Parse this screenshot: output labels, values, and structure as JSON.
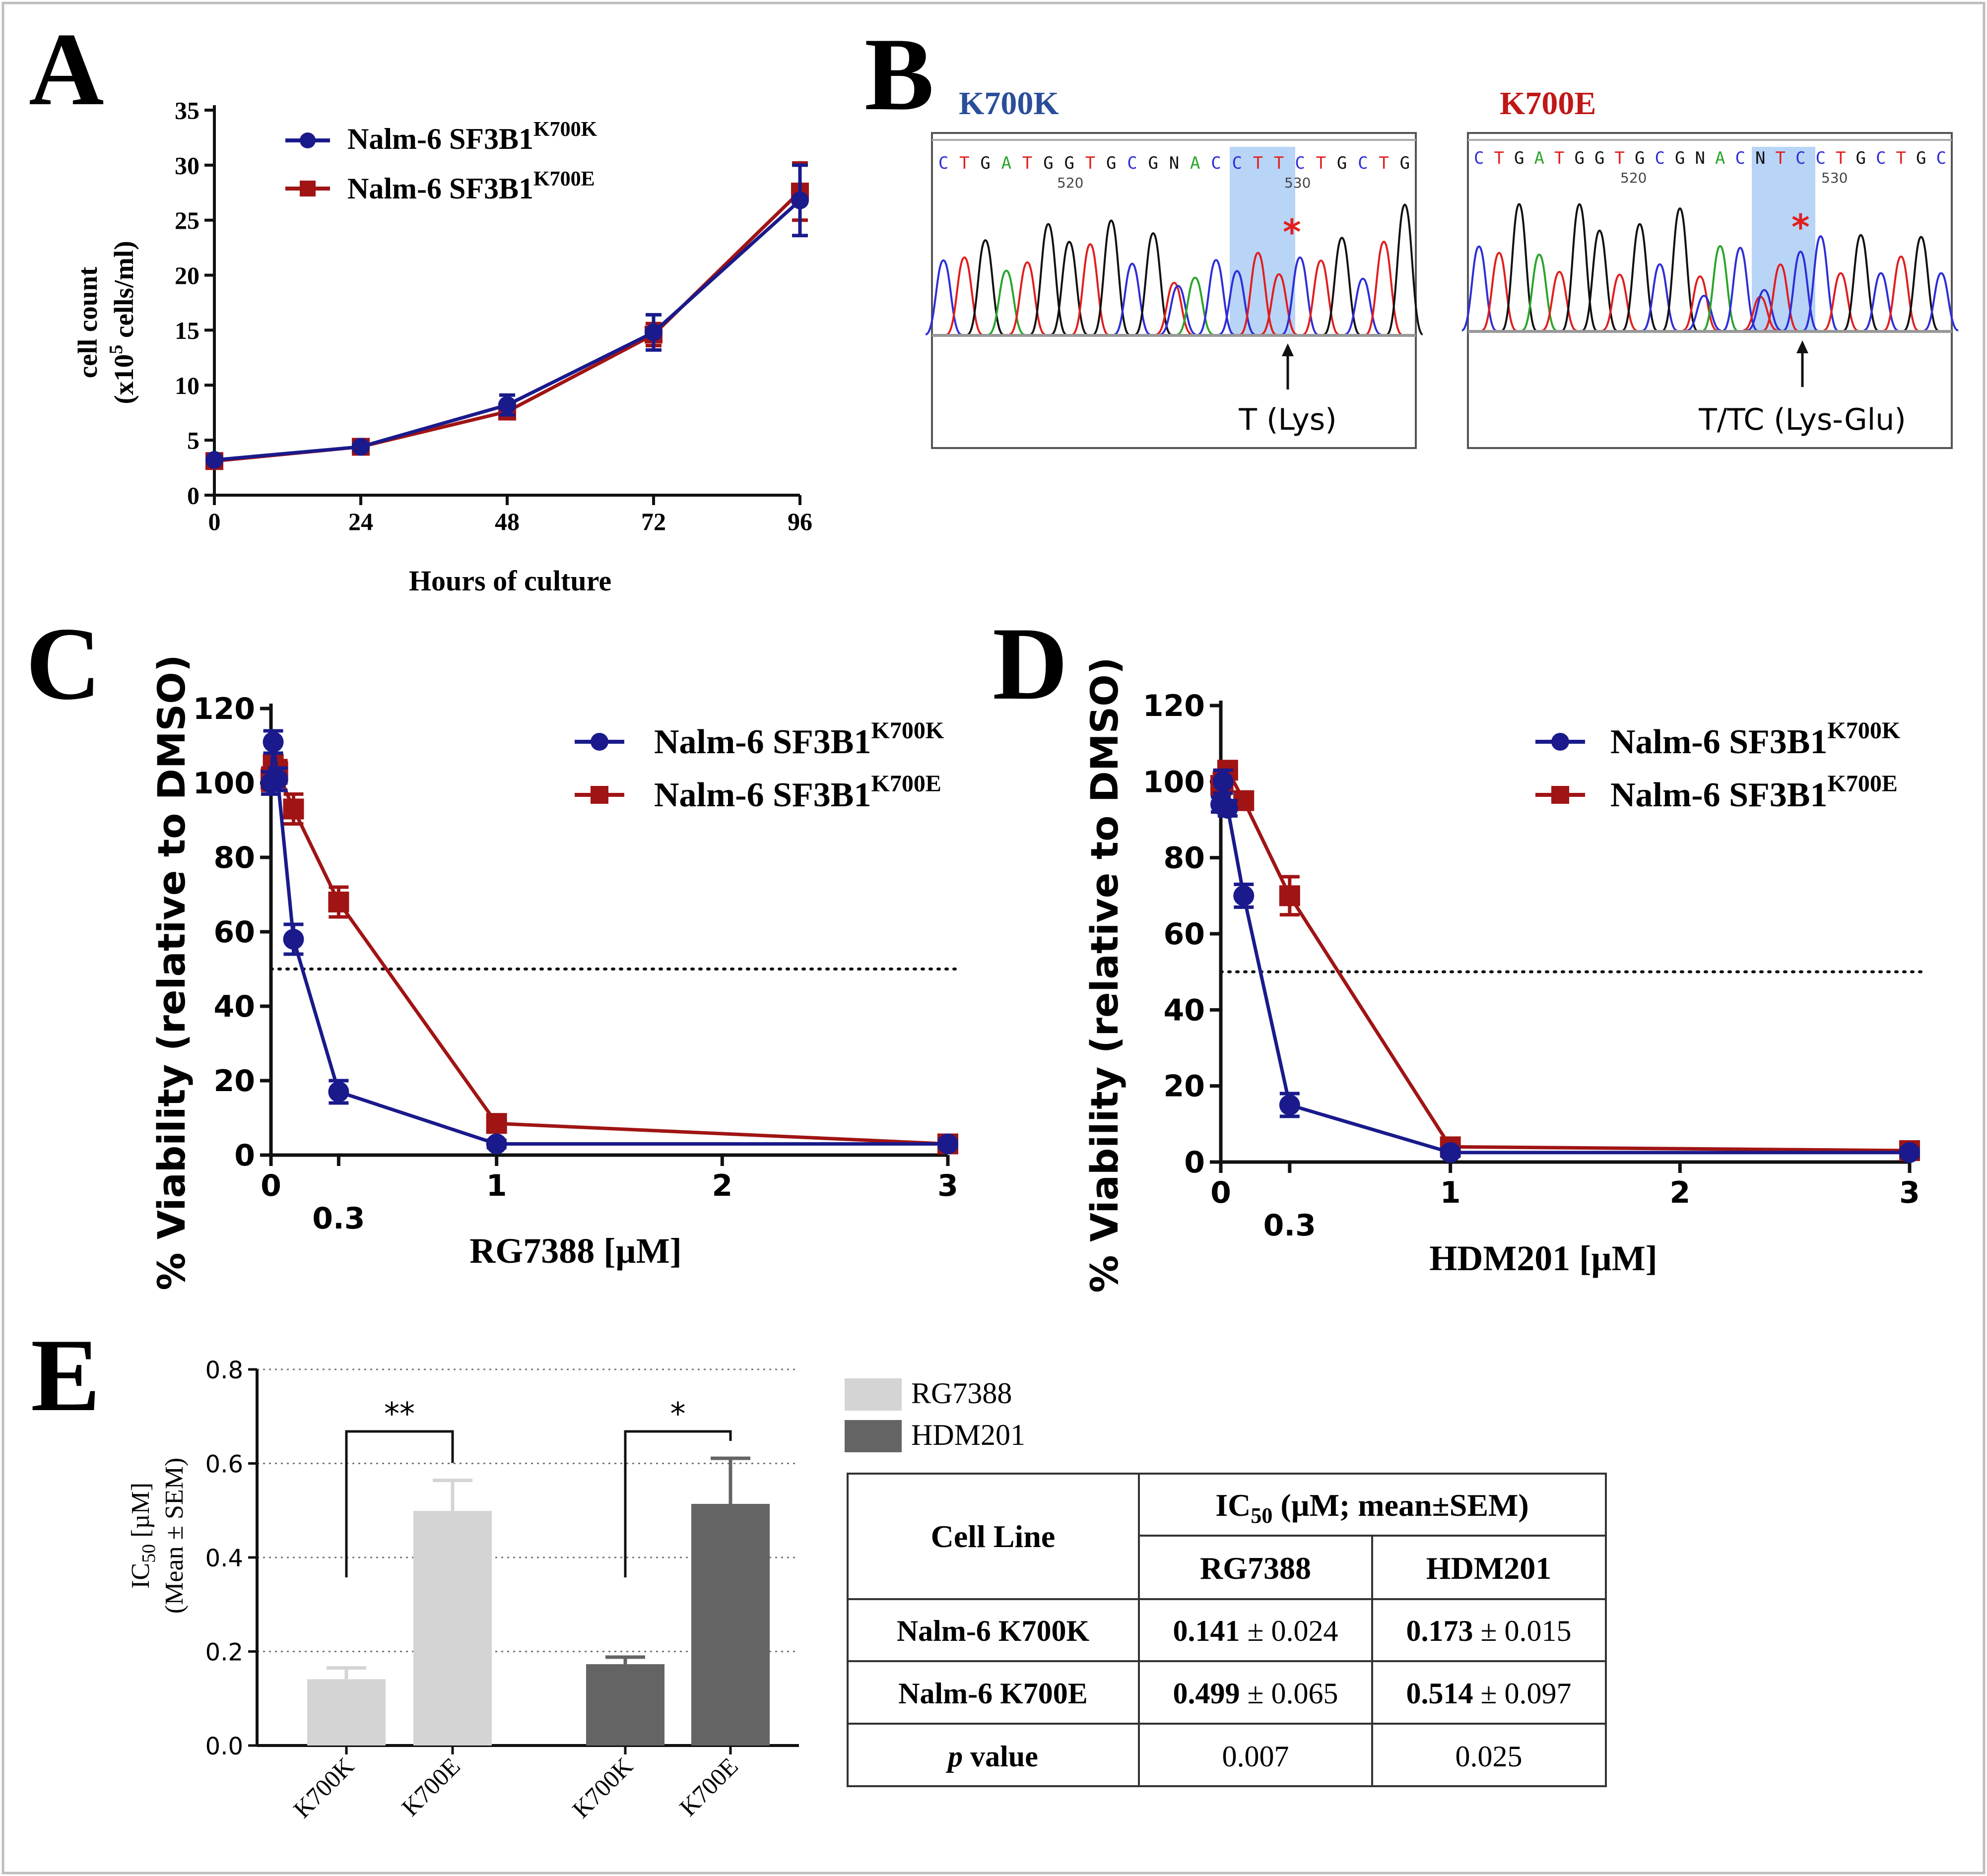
{
  "panels": {
    "a": "A",
    "b": "B",
    "c": "C",
    "d": "D",
    "e": "E"
  },
  "colors": {
    "k700k": "#1a1a8c",
    "k700e": "#a01414",
    "rg": "#d4d4d4",
    "hdm": "#646464",
    "seq_a": "#2aa52a",
    "seq_c": "#2d2dd8",
    "seq_g": "#111111",
    "seq_t": "#e01e1e",
    "star": "#e01e1e",
    "highlight": "#b8d4f6"
  },
  "legend": {
    "k700k": {
      "base": "Nalm-6 SF3B1",
      "sup": "K700K"
    },
    "k700e": {
      "base": "Nalm-6 SF3B1",
      "sup": "K700E"
    }
  },
  "chart_data": [
    {
      "id": "A",
      "type": "line",
      "xlabel": "Hours of culture",
      "ylabel_1": "cell count",
      "ylabel_2": {
        "pre": "(x10",
        "sup": "5",
        "post": " cells/ml)"
      },
      "xlim": [
        0,
        96
      ],
      "ylim": [
        0,
        35
      ],
      "xticks": [
        0,
        24,
        48,
        72,
        96
      ],
      "yticks": [
        0,
        5,
        10,
        15,
        20,
        25,
        30,
        35
      ],
      "series": [
        {
          "name": "Nalm-6 SF3B1 K700K",
          "x": [
            0,
            24,
            48,
            72,
            96
          ],
          "y": [
            3.2,
            4.4,
            8.2,
            14.8,
            26.8
          ],
          "err": [
            0.3,
            0.3,
            0.9,
            1.6,
            3.2
          ]
        },
        {
          "name": "Nalm-6 SF3B1 K700E",
          "x": [
            0,
            24,
            48,
            72,
            96
          ],
          "y": [
            3.1,
            4.4,
            7.6,
            14.6,
            27.6
          ],
          "err": [
            0.3,
            0.3,
            0.6,
            1.0,
            2.6
          ]
        }
      ]
    },
    {
      "id": "C",
      "type": "line",
      "xlabel": "RG7388 [µM]",
      "ylabel": "% Viability (relative to DMSO)",
      "xlim": [
        0,
        3
      ],
      "ylim": [
        0,
        120
      ],
      "xticks": [
        "0",
        "1",
        "2",
        "3"
      ],
      "xtick_vals": [
        0,
        1,
        2,
        3
      ],
      "xtick_extra": {
        "label": "0.3",
        "value": 0.3
      },
      "yticks": [
        0,
        20,
        40,
        60,
        80,
        100,
        120
      ],
      "threshold": 50,
      "series": [
        {
          "name": "Nalm-6 SF3B1 K700K",
          "x": [
            0,
            0.01,
            0.03,
            0.1,
            0.3,
            1,
            3
          ],
          "y": [
            100,
            111,
            101,
            58,
            17,
            3,
            3
          ],
          "err": [
            3,
            3,
            3,
            4,
            3,
            1,
            1
          ]
        },
        {
          "name": "Nalm-6 SF3B1 K700E",
          "x": [
            0,
            0.01,
            0.03,
            0.1,
            0.3,
            1,
            3
          ],
          "y": [
            101,
            105,
            103,
            93,
            68,
            8.5,
            3
          ],
          "err": [
            3,
            3,
            3,
            4,
            4,
            1,
            1
          ]
        }
      ]
    },
    {
      "id": "D",
      "type": "line",
      "xlabel": "HDM201 [µM]",
      "ylabel": "% Viability (relative to DMSO)",
      "xlim": [
        0,
        3
      ],
      "ylim": [
        0,
        120
      ],
      "xticks": [
        "0",
        "1",
        "2",
        "3"
      ],
      "xtick_vals": [
        0,
        1,
        2,
        3
      ],
      "xtick_extra": {
        "label": "0.3",
        "value": 0.3
      },
      "yticks": [
        0,
        20,
        40,
        60,
        80,
        100,
        120
      ],
      "threshold": 50,
      "series": [
        {
          "name": "Nalm-6 SF3B1 K700K",
          "x": [
            0,
            0.01,
            0.03,
            0.1,
            0.3,
            1,
            3
          ],
          "y": [
            94,
            100,
            93,
            70,
            15,
            2.5,
            2.5
          ],
          "err": [
            2,
            3,
            2,
            3,
            3,
            1,
            1
          ]
        },
        {
          "name": "Nalm-6 SF3B1 K700E",
          "x": [
            0,
            0.01,
            0.03,
            0.1,
            0.3,
            1,
            3
          ],
          "y": [
            99,
            100,
            103,
            95,
            70,
            4,
            3
          ],
          "err": [
            2,
            3,
            2,
            2,
            5,
            1,
            1
          ]
        }
      ]
    },
    {
      "id": "E",
      "type": "bar",
      "ylabel_1": {
        "pre": "IC",
        "sub": "50",
        "post": " [µM]"
      },
      "ylabel_2": "(Mean ± SEM)",
      "ylim": [
        0,
        0.8
      ],
      "yticks": [
        "0.0",
        "0.2",
        "0.4",
        "0.6",
        "0.8"
      ],
      "ytick_vals": [
        0,
        0.2,
        0.4,
        0.6,
        0.8
      ],
      "categories": [
        "K700K",
        "K700E",
        "K700K",
        "K700E"
      ],
      "values": [
        0.141,
        0.499,
        0.173,
        0.514
      ],
      "errors": [
        0.024,
        0.065,
        0.015,
        0.097
      ],
      "groups": [
        "RG7388",
        "RG7388",
        "HDM201",
        "HDM201"
      ],
      "legend": [
        "RG7388",
        "HDM201"
      ],
      "significance": [
        {
          "label": "**",
          "bars": [
            0,
            1
          ]
        },
        {
          "label": "*",
          "bars": [
            2,
            3
          ]
        }
      ]
    }
  ],
  "sequencing": {
    "k700k": {
      "title": "K700K",
      "seq": [
        "C",
        "T",
        "G",
        "A",
        "T",
        "G",
        "G",
        "T",
        "G",
        "C",
        "G",
        "N",
        "A",
        "C",
        "C",
        "T",
        "T",
        "C",
        "T",
        "G",
        "C",
        "T",
        "G"
      ],
      "pos": [
        "520",
        "530"
      ],
      "annot": "T (Lys)",
      "star": "*"
    },
    "k700e": {
      "title": "K700E",
      "seq": [
        "C",
        "T",
        "G",
        "A",
        "T",
        "G",
        "G",
        "T",
        "G",
        "C",
        "G",
        "N",
        "A",
        "C",
        "N",
        "T",
        "C",
        "C",
        "T",
        "G",
        "C",
        "T",
        "G",
        "C"
      ],
      "pos": [
        "520",
        "530"
      ],
      "annot": "T/TC (Lys-Glu)",
      "star": "*"
    }
  },
  "table": {
    "cell_line": "Cell Line",
    "ic50_header": {
      "pre": "IC",
      "sub": "50",
      "post": " (µM; mean±SEM)"
    },
    "col_rg": "RG7388",
    "col_hdm": "HDM201",
    "rows": [
      {
        "label": "Nalm-6 K700K",
        "rg_b": "0.141",
        "rg_e": " ± 0.024",
        "hdm_b": "0.173",
        "hdm_e": " ± 0.015"
      },
      {
        "label": "Nalm-6 K700E",
        "rg_b": "0.499",
        "rg_e": " ± 0.065",
        "hdm_b": "0.514",
        "hdm_e": " ± 0.097"
      }
    ],
    "p_label": {
      "it": "p",
      "rest": " value"
    },
    "p_rg": "0.007",
    "p_hdm": "0.025"
  }
}
